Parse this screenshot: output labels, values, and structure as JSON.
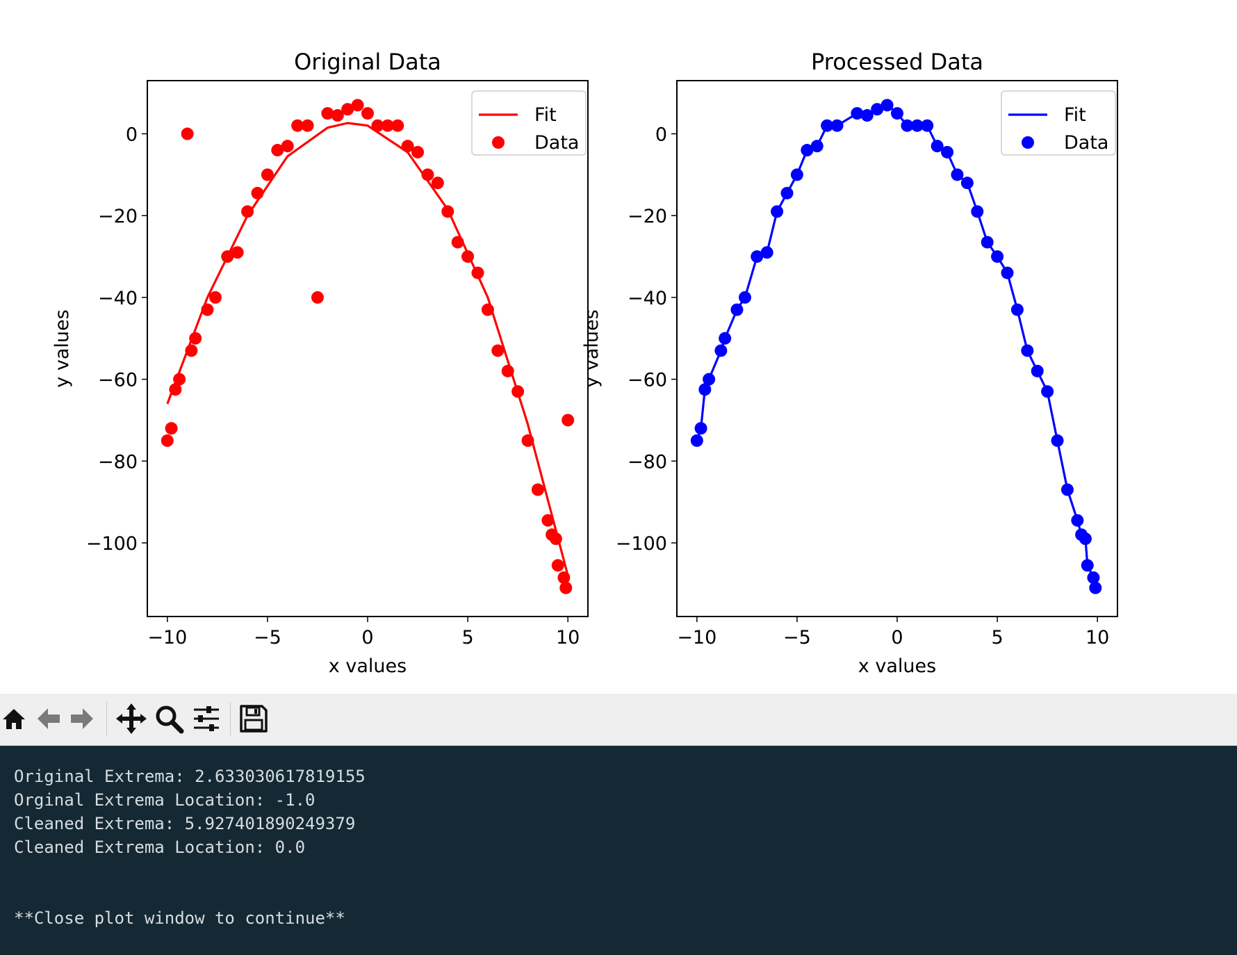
{
  "plots": [
    {
      "title": "Original Data",
      "xlabel": "x values",
      "ylabel": "y values",
      "legend": [
        "Fit",
        "Data"
      ],
      "color": "#ff0000"
    },
    {
      "title": "Processed Data",
      "xlabel": "x values",
      "ylabel": "y values",
      "legend": [
        "Fit",
        "Data"
      ],
      "color": "#0000ff"
    }
  ],
  "chart_data": [
    {
      "type": "scatter",
      "title": "Original Data",
      "xlabel": "x values",
      "ylabel": "y values",
      "xlim": [
        -11,
        11
      ],
      "ylim": [
        -118,
        13
      ],
      "xticks": [
        -10,
        -5,
        0,
        5,
        10
      ],
      "yticks": [
        0,
        -20,
        -40,
        -60,
        -80,
        -100
      ],
      "legend_position": "top-right",
      "grid": false,
      "series": [
        {
          "name": "Data",
          "kind": "scatter",
          "color": "#ff0000",
          "x": [
            -10,
            -9.8,
            -9.6,
            -9.4,
            -9,
            -8.8,
            -8.6,
            -8,
            -7.6,
            -7,
            -6.5,
            -6,
            -5.5,
            -5,
            -4.5,
            -4,
            -3.5,
            -3,
            -2.5,
            -2,
            -1.5,
            -1,
            -0.5,
            0,
            0.5,
            1,
            1.5,
            2,
            2.5,
            3,
            3.5,
            4,
            4.5,
            5,
            5.5,
            6,
            6.5,
            7,
            7.5,
            8,
            8.5,
            9,
            9.2,
            9.4,
            9.5,
            9.8,
            9.9,
            10
          ],
          "y": [
            -75,
            -72,
            -62.5,
            -60,
            0,
            -53,
            -50,
            -43,
            -40,
            -30,
            -29,
            -19,
            -14.5,
            -10,
            -4,
            -3,
            2,
            2,
            -40,
            5,
            4.5,
            6,
            7,
            5,
            2,
            2,
            2,
            -3,
            -4.5,
            -10,
            -12,
            -19,
            -26.5,
            -30,
            -34,
            -43,
            -53,
            -58,
            -63,
            -75,
            -87,
            -94.5,
            -98,
            -99,
            -105.5,
            -108.5,
            -111,
            -70
          ]
        },
        {
          "name": "Fit",
          "kind": "line",
          "color": "#ff0000",
          "x": [
            -10,
            -8,
            -6,
            -4,
            -2,
            -1,
            0,
            2,
            4,
            6,
            8,
            10
          ],
          "y": [
            -66,
            -40,
            -20,
            -5.5,
            1.5,
            2.63,
            2,
            -4.5,
            -18.5,
            -40,
            -71,
            -108
          ]
        }
      ]
    },
    {
      "type": "scatter",
      "title": "Processed Data",
      "xlabel": "x values",
      "ylabel": "y values",
      "xlim": [
        -11,
        11
      ],
      "ylim": [
        -118,
        13
      ],
      "xticks": [
        -10,
        -5,
        0,
        5,
        10
      ],
      "yticks": [
        0,
        -20,
        -40,
        -60,
        -80,
        -100
      ],
      "legend_position": "top-right",
      "grid": false,
      "series": [
        {
          "name": "Data",
          "kind": "scatter",
          "color": "#0000ff",
          "x": [
            -10,
            -9.8,
            -9.6,
            -9.4,
            -8.8,
            -8.6,
            -8,
            -7.6,
            -7,
            -6.5,
            -6,
            -5.5,
            -5,
            -4.5,
            -4,
            -3.5,
            -3,
            -2,
            -1.5,
            -1,
            -0.5,
            0,
            0.5,
            1,
            1.5,
            2,
            2.5,
            3,
            3.5,
            4,
            4.5,
            5,
            5.5,
            6,
            6.5,
            7,
            7.5,
            8,
            8.5,
            9,
            9.2,
            9.4,
            9.5,
            9.8,
            9.9
          ],
          "y": [
            -75,
            -72,
            -62.5,
            -60,
            -53,
            -50,
            -43,
            -40,
            -30,
            -29,
            -19,
            -14.5,
            -10,
            -4,
            -3,
            2,
            2,
            5,
            4.5,
            6,
            7,
            5,
            2,
            2,
            2,
            -3,
            -4.5,
            -10,
            -12,
            -19,
            -26.5,
            -30,
            -34,
            -43,
            -53,
            -58,
            -63,
            -75,
            -87,
            -94.5,
            -98,
            -99,
            -105.5,
            -108.5,
            -111
          ]
        },
        {
          "name": "Fit",
          "kind": "line",
          "color": "#0000ff",
          "x": [
            -10,
            -9.8,
            -9.6,
            -9.4,
            -8.8,
            -8.6,
            -8,
            -7.6,
            -7,
            -6.5,
            -6,
            -5.5,
            -5,
            -4.5,
            -4,
            -3.5,
            -3,
            -2,
            -1.5,
            -1,
            -0.5,
            0,
            0.5,
            1,
            1.5,
            2,
            2.5,
            3,
            3.5,
            4,
            4.5,
            5,
            5.5,
            6,
            6.5,
            7,
            7.5,
            8,
            8.5,
            9,
            9.2,
            9.4,
            9.5,
            9.8,
            9.9
          ],
          "y": [
            -75,
            -72,
            -62.5,
            -60,
            -53,
            -50,
            -43,
            -40,
            -30,
            -29,
            -19,
            -14.5,
            -10,
            -4,
            -3,
            2,
            2,
            5,
            4.5,
            6,
            7,
            5,
            2,
            2,
            2,
            -3,
            -4.5,
            -10,
            -12,
            -19,
            -26.5,
            -30,
            -34,
            -43,
            -53,
            -58,
            -63,
            -75,
            -87,
            -94.5,
            -98,
            -99,
            -105.5,
            -108.5,
            -111
          ]
        }
      ]
    }
  ],
  "toolbar": {
    "buttons": [
      "home-icon",
      "back-arrow-icon",
      "forward-arrow-icon",
      "pan-icon",
      "zoom-icon",
      "configure-subplots-icon",
      "save-icon"
    ]
  },
  "console": {
    "lines": [
      "Original Extrema: 2.633030617819155",
      "Orginal Extrema Location: -1.0",
      "Cleaned Extrema: 5.927401890249379",
      "Cleaned Extrema Location: 0.0",
      "**Close plot window to continue**"
    ]
  }
}
